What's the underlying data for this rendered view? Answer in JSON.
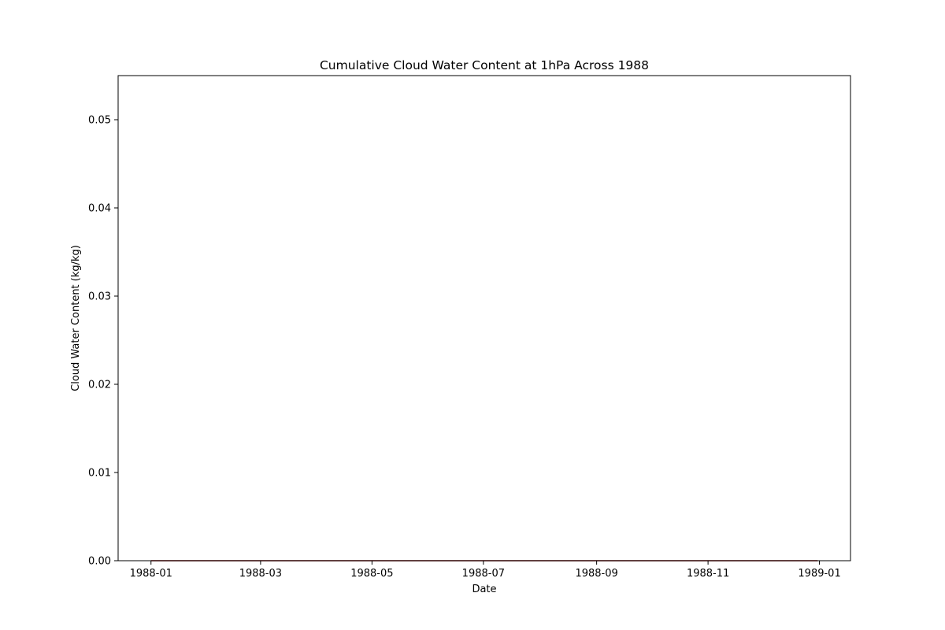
{
  "chart_data": {
    "type": "line",
    "title": "Cumulative Cloud Water Content at 1hPa Across 1988",
    "xlabel": "Date",
    "ylabel": "Cloud Water Content (kg/kg)",
    "x_range": [
      "1987-12-14",
      "1989-01-18"
    ],
    "ylim": [
      0.0,
      0.055
    ],
    "x_ticks": [
      {
        "date": "1988-01-01",
        "label": "1988-01"
      },
      {
        "date": "1988-03-01",
        "label": "1988-03"
      },
      {
        "date": "1988-05-01",
        "label": "1988-05"
      },
      {
        "date": "1988-07-01",
        "label": "1988-07"
      },
      {
        "date": "1988-09-01",
        "label": "1988-09"
      },
      {
        "date": "1988-11-01",
        "label": "1988-11"
      },
      {
        "date": "1989-01-01",
        "label": "1989-01"
      }
    ],
    "y_ticks": [
      {
        "value": 0.0,
        "label": "0.00"
      },
      {
        "value": 0.01,
        "label": "0.01"
      },
      {
        "value": 0.02,
        "label": "0.02"
      },
      {
        "value": 0.03,
        "label": "0.03"
      },
      {
        "value": 0.04,
        "label": "0.04"
      },
      {
        "value": 0.05,
        "label": "0.05"
      }
    ],
    "grid": false,
    "legend": "none",
    "series": [
      {
        "color": "#8b0000",
        "points": [
          {
            "x": "1988-01-01",
            "y": 0.0
          },
          {
            "x": "1988-12-31",
            "y": 0.0
          }
        ]
      }
    ]
  }
}
